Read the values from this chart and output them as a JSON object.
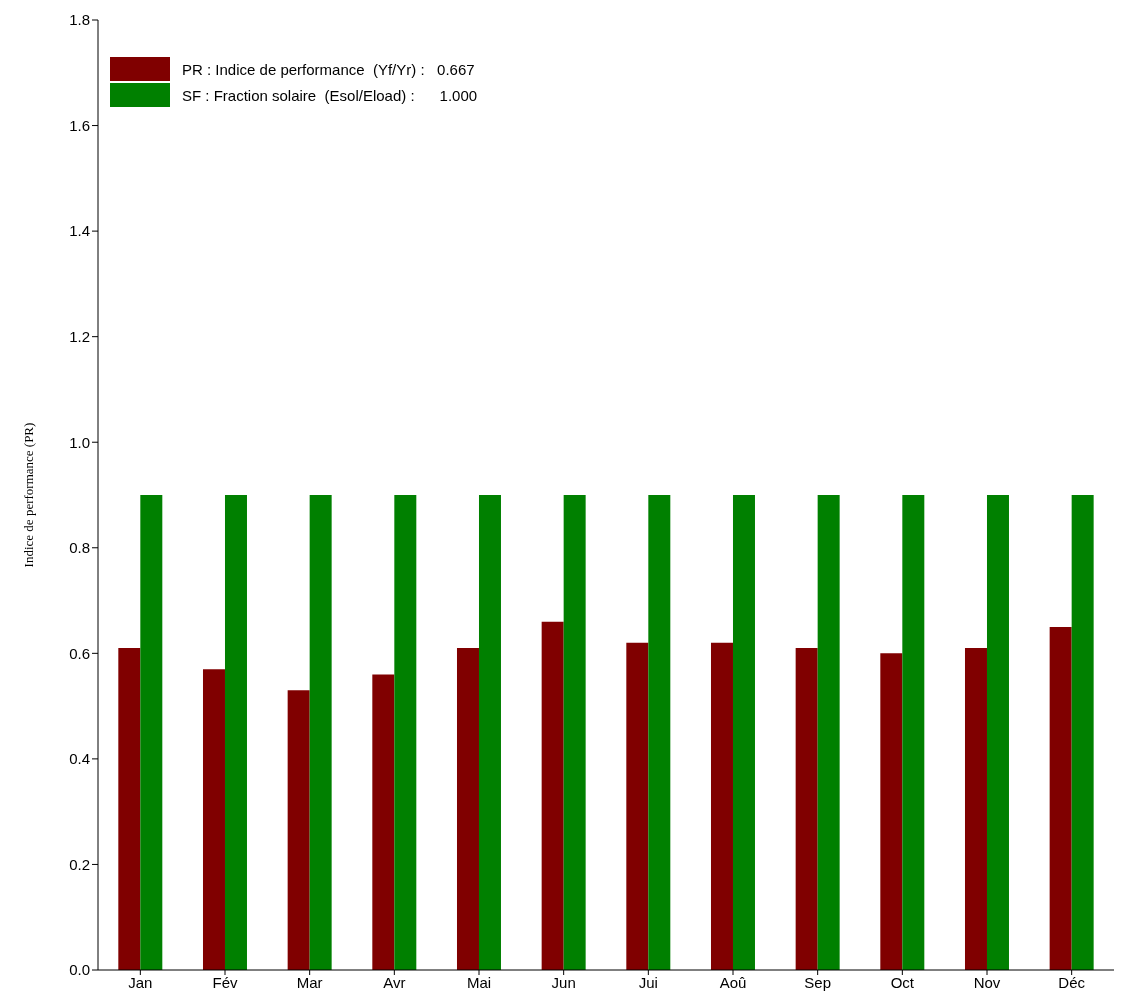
{
  "chart_data": {
    "type": "bar",
    "ylabel": "Indice de performance (PR)",
    "categories": [
      "Jan",
      "Fév",
      "Mar",
      "Avr",
      "Mai",
      "Jun",
      "Jui",
      "Aoû",
      "Sep",
      "Oct",
      "Nov",
      "Déc"
    ],
    "series": [
      {
        "name": "PR : Indice de performance  (Yf/Yr) :   0.667",
        "color": "#800000",
        "values": [
          0.61,
          0.57,
          0.53,
          0.56,
          0.61,
          0.66,
          0.62,
          0.62,
          0.61,
          0.6,
          0.61,
          0.65
        ]
      },
      {
        "name": "SF : Fraction solaire  (Esol/Eload) :      1.000",
        "color": "#008000",
        "values": [
          0.9,
          0.9,
          0.9,
          0.9,
          0.9,
          0.9,
          0.9,
          0.9,
          0.9,
          0.9,
          0.9,
          0.9
        ]
      }
    ],
    "ylim": [
      0,
      1.8
    ],
    "yticks": [
      {
        "value": 0,
        "label": "0.0"
      },
      {
        "value": 0.2,
        "label": "0.2"
      },
      {
        "value": 0.4,
        "label": "0.4"
      },
      {
        "value": 0.6,
        "label": "0.6"
      },
      {
        "value": 0.8,
        "label": "0.8"
      },
      {
        "value": 1.0,
        "label": "1.0"
      },
      {
        "value": 1.2,
        "label": "1.2"
      },
      {
        "value": 1.4,
        "label": "1.4"
      },
      {
        "value": 1.6,
        "label": "1.6"
      },
      {
        "value": 1.8,
        "label": "1.8"
      }
    ],
    "grid": false,
    "legend": "top left"
  }
}
